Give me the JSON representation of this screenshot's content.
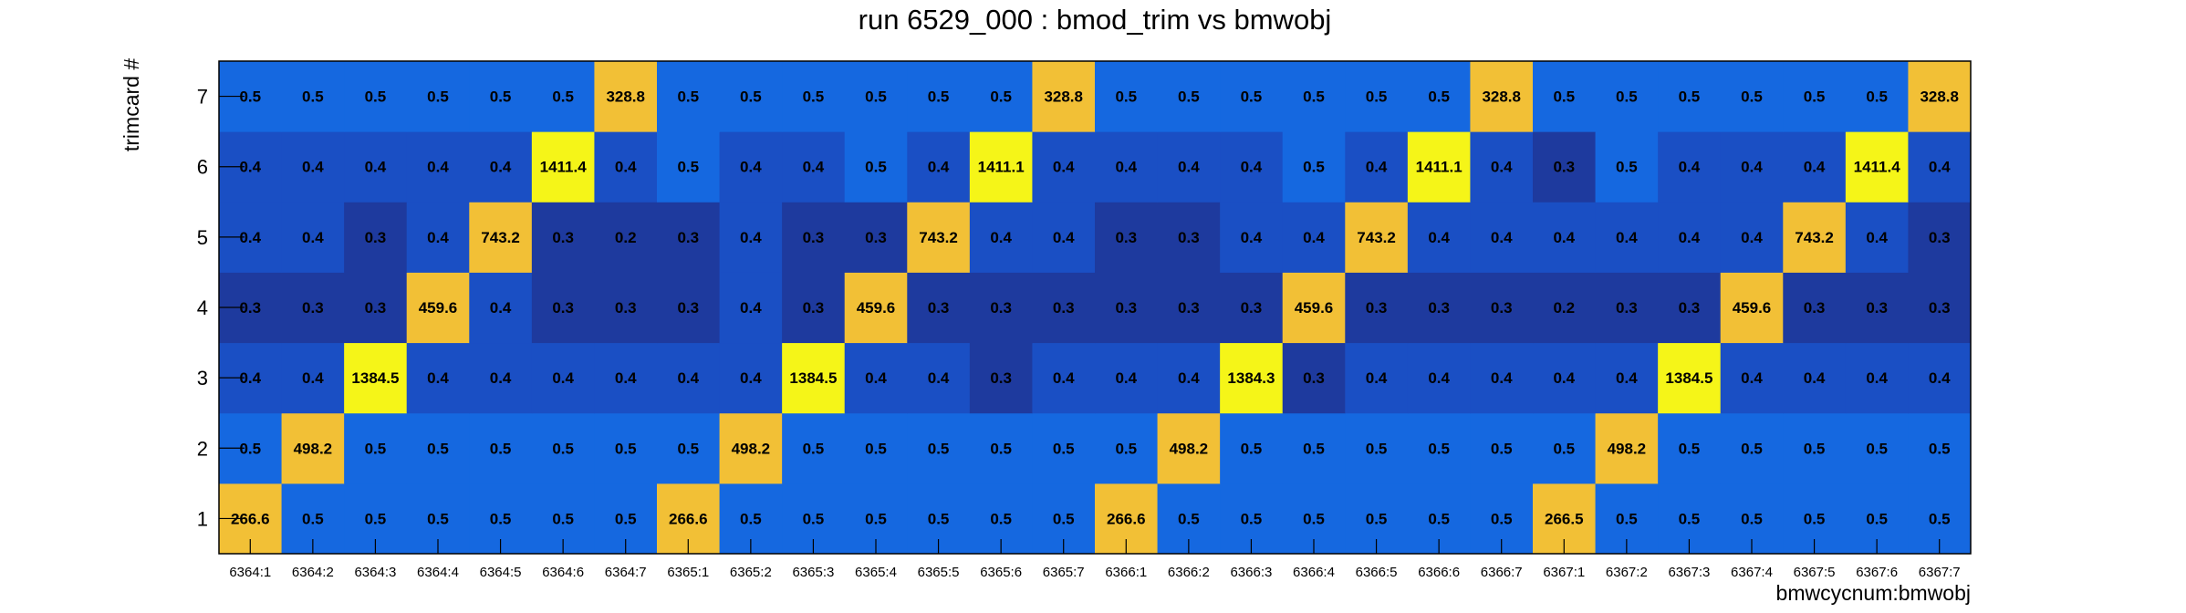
{
  "chart_data": {
    "type": "heatmap",
    "title": "run 6529_000 : bmod_trim vs bmwobj",
    "xlabel": "bmwcycnum:bmwobj",
    "ylabel": "trimcard #",
    "x_categories": [
      "6364:1",
      "6364:2",
      "6364:3",
      "6364:4",
      "6364:5",
      "6364:6",
      "6364:7",
      "6365:1",
      "6365:2",
      "6365:3",
      "6365:4",
      "6365:5",
      "6365:6",
      "6365:7",
      "6366:1",
      "6366:2",
      "6366:3",
      "6366:4",
      "6366:5",
      "6366:6",
      "6366:7",
      "6367:1",
      "6367:2",
      "6367:3",
      "6367:4",
      "6367:5",
      "6367:6",
      "6367:7"
    ],
    "y_categories": [
      "1",
      "2",
      "3",
      "4",
      "5",
      "6",
      "7"
    ],
    "values": [
      [
        "266.6",
        "0.5",
        "0.5",
        "0.5",
        "0.5",
        "0.5",
        "0.5",
        "266.6",
        "0.5",
        "0.5",
        "0.5",
        "0.5",
        "0.5",
        "0.5",
        "266.6",
        "0.5",
        "0.5",
        "0.5",
        "0.5",
        "0.5",
        "0.5",
        "266.5",
        "0.5",
        "0.5",
        "0.5",
        "0.5",
        "0.5",
        "0.5"
      ],
      [
        "0.5",
        "498.2",
        "0.5",
        "0.5",
        "0.5",
        "0.5",
        "0.5",
        "0.5",
        "498.2",
        "0.5",
        "0.5",
        "0.5",
        "0.5",
        "0.5",
        "0.5",
        "498.2",
        "0.5",
        "0.5",
        "0.5",
        "0.5",
        "0.5",
        "0.5",
        "498.2",
        "0.5",
        "0.5",
        "0.5",
        "0.5",
        "0.5"
      ],
      [
        "0.4",
        "0.4",
        "1384.5",
        "0.4",
        "0.4",
        "0.4",
        "0.4",
        "0.4",
        "0.4",
        "1384.5",
        "0.4",
        "0.4",
        "0.3",
        "0.4",
        "0.4",
        "0.4",
        "1384.3",
        "0.3",
        "0.4",
        "0.4",
        "0.4",
        "0.4",
        "0.4",
        "1384.5",
        "0.4",
        "0.4",
        "0.4",
        "0.4"
      ],
      [
        "0.3",
        "0.3",
        "0.3",
        "459.6",
        "0.4",
        "0.3",
        "0.3",
        "0.3",
        "0.4",
        "0.3",
        "459.6",
        "0.3",
        "0.3",
        "0.3",
        "0.3",
        "0.3",
        "0.3",
        "459.6",
        "0.3",
        "0.3",
        "0.3",
        "0.2",
        "0.3",
        "0.3",
        "459.6",
        "0.3",
        "0.3",
        "0.3"
      ],
      [
        "0.4",
        "0.4",
        "0.3",
        "0.4",
        "743.2",
        "0.3",
        "0.2",
        "0.3",
        "0.4",
        "0.3",
        "0.3",
        "743.2",
        "0.4",
        "0.4",
        "0.3",
        "0.3",
        "0.4",
        "0.4",
        "743.2",
        "0.4",
        "0.4",
        "0.4",
        "0.4",
        "0.4",
        "0.4",
        "743.2",
        "0.4",
        "0.3"
      ],
      [
        "0.4",
        "0.4",
        "0.4",
        "0.4",
        "0.4",
        "1411.4",
        "0.4",
        "0.5",
        "0.4",
        "0.4",
        "0.5",
        "0.4",
        "1411.1",
        "0.4",
        "0.4",
        "0.4",
        "0.4",
        "0.5",
        "0.4",
        "1411.1",
        "0.4",
        "0.3",
        "0.5",
        "0.4",
        "0.4",
        "0.4",
        "1411.4",
        "0.4"
      ],
      [
        "0.5",
        "0.5",
        "0.5",
        "0.5",
        "0.5",
        "0.5",
        "328.8",
        "0.5",
        "0.5",
        "0.5",
        "0.5",
        "0.5",
        "0.5",
        "328.8",
        "0.5",
        "0.5",
        "0.5",
        "0.5",
        "0.5",
        "0.5",
        "328.8",
        "0.5",
        "0.5",
        "0.5",
        "0.5",
        "0.5",
        "0.5",
        "328.8"
      ]
    ],
    "grid": false,
    "legend": "none"
  },
  "colors": {
    "very_low": "#1e3a9e",
    "low": "#1a4fc4",
    "mid": "#0f5fd8",
    "high_mid": "#1568e0",
    "orange": "#f2c036",
    "yellow": "#f5f518"
  }
}
